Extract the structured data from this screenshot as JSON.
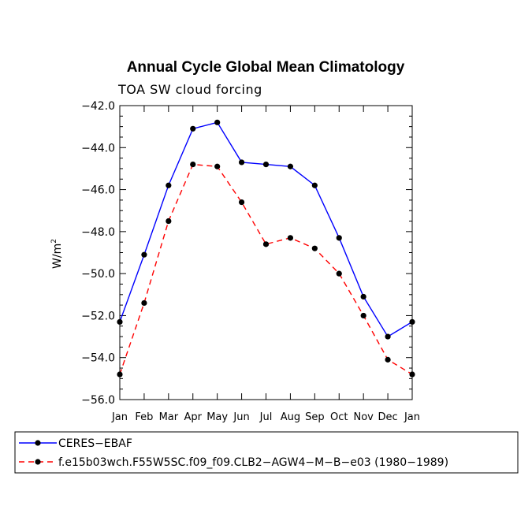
{
  "chart_data": {
    "type": "line",
    "title": "Annual Cycle Global Mean Climatology",
    "subtitle": "TOA SW cloud forcing",
    "ylabel": "W/m",
    "ylabel_sup": "2",
    "xlabel": "",
    "ylim": [
      -56.0,
      -42.0
    ],
    "yticks": [
      "-42.0",
      "-44.0",
      "-46.0",
      "-48.0",
      "-50.0",
      "-52.0",
      "-54.0",
      "-56.0"
    ],
    "categories": [
      "Jan",
      "Feb",
      "Mar",
      "Apr",
      "May",
      "Jun",
      "Jul",
      "Aug",
      "Sep",
      "Oct",
      "Nov",
      "Dec",
      "Jan"
    ],
    "series": [
      {
        "name": "CERES-EBAF",
        "color": "#0000ff",
        "dash": "solid",
        "values": [
          -52.3,
          -49.1,
          -45.8,
          -43.1,
          -42.8,
          -44.7,
          -44.8,
          -44.9,
          -45.8,
          -48.3,
          -51.1,
          -53.0,
          -52.3
        ]
      },
      {
        "name": "f.e15b03wch.F55W5SC.f09_f09.CLB2-AGW4-M-B-e03 (1980-1989)",
        "color": "#ff0000",
        "dash": "dashed",
        "values": [
          -54.8,
          -51.4,
          -47.5,
          -44.8,
          -44.9,
          -46.6,
          -48.6,
          -48.3,
          -48.8,
          -50.0,
          -52.0,
          -54.1,
          -54.8
        ]
      }
    ],
    "grid": false,
    "legend_position": "bottom"
  }
}
